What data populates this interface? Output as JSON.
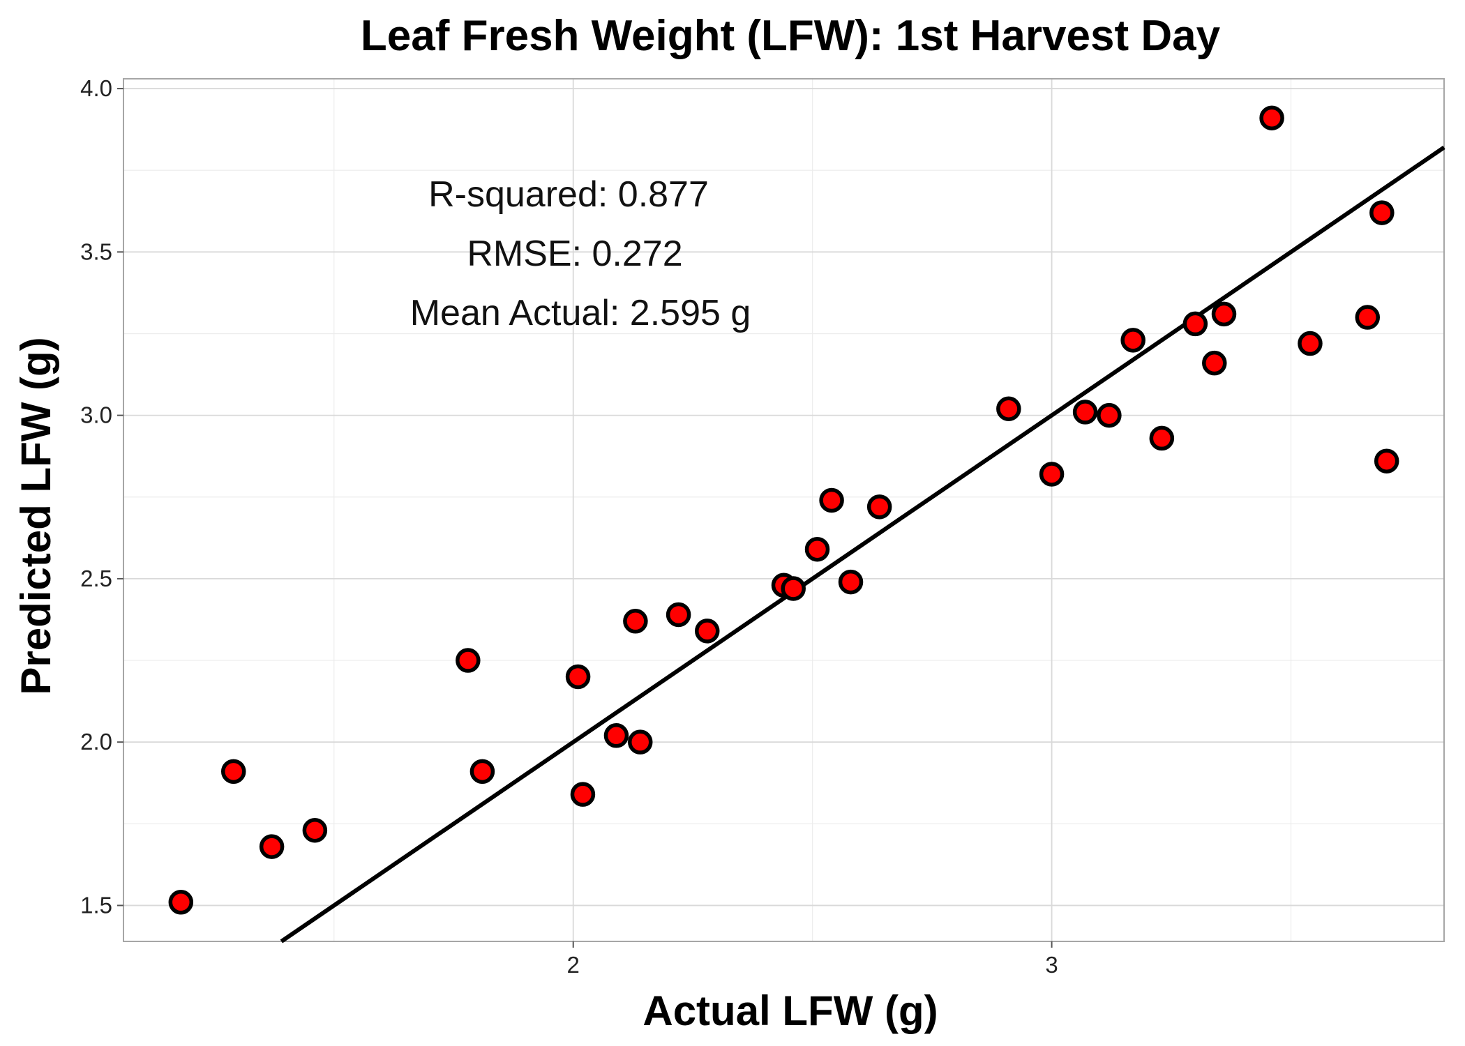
{
  "chart_data": {
    "type": "scatter",
    "title": "Leaf Fresh Weight (LFW): 1st Harvest Day",
    "xlabel": "Actual LFW (g)",
    "ylabel": "Predicted LFW (g)",
    "xlim": [
      1.06,
      3.82
    ],
    "ylim": [
      1.39,
      4.03
    ],
    "x_ticks": [
      2,
      3
    ],
    "x_tick_labels": [
      "2",
      "3"
    ],
    "x_minor_ticks": [
      1.5,
      2.5,
      3.5
    ],
    "y_ticks": [
      1.5,
      2.0,
      2.5,
      3.0,
      3.5,
      4.0
    ],
    "y_tick_labels": [
      "1.5",
      "2.0",
      "2.5",
      "3.0",
      "3.5",
      "4.0"
    ],
    "y_minor_ticks": [
      1.75,
      2.25,
      2.75,
      3.25,
      3.75
    ],
    "grid": true,
    "points": [
      {
        "x": 1.18,
        "y": 1.51
      },
      {
        "x": 1.29,
        "y": 1.91
      },
      {
        "x": 1.37,
        "y": 1.68
      },
      {
        "x": 1.46,
        "y": 1.73
      },
      {
        "x": 1.78,
        "y": 2.25
      },
      {
        "x": 1.81,
        "y": 1.91
      },
      {
        "x": 2.01,
        "y": 2.2
      },
      {
        "x": 2.02,
        "y": 1.84
      },
      {
        "x": 2.09,
        "y": 2.02
      },
      {
        "x": 2.13,
        "y": 2.37
      },
      {
        "x": 2.14,
        "y": 2.0
      },
      {
        "x": 2.22,
        "y": 2.39
      },
      {
        "x": 2.28,
        "y": 2.34
      },
      {
        "x": 2.44,
        "y": 2.48
      },
      {
        "x": 2.46,
        "y": 2.47
      },
      {
        "x": 2.51,
        "y": 2.59
      },
      {
        "x": 2.54,
        "y": 2.74
      },
      {
        "x": 2.58,
        "y": 2.49
      },
      {
        "x": 2.64,
        "y": 2.72
      },
      {
        "x": 2.91,
        "y": 3.02
      },
      {
        "x": 3.0,
        "y": 2.82
      },
      {
        "x": 3.07,
        "y": 3.01
      },
      {
        "x": 3.12,
        "y": 3.0
      },
      {
        "x": 3.17,
        "y": 3.23
      },
      {
        "x": 3.23,
        "y": 2.93
      },
      {
        "x": 3.3,
        "y": 3.28
      },
      {
        "x": 3.34,
        "y": 3.16
      },
      {
        "x": 3.36,
        "y": 3.31
      },
      {
        "x": 3.46,
        "y": 3.91
      },
      {
        "x": 3.54,
        "y": 3.22
      },
      {
        "x": 3.66,
        "y": 3.3
      },
      {
        "x": 3.69,
        "y": 3.62
      },
      {
        "x": 3.7,
        "y": 2.86
      }
    ],
    "reference_line": {
      "slope": 1,
      "intercept": 0
    },
    "annotations": {
      "r_squared": "R-squared:  0.877",
      "rmse": "RMSE:  0.272",
      "mean_actual": "Mean Actual:  2.595 g"
    }
  }
}
